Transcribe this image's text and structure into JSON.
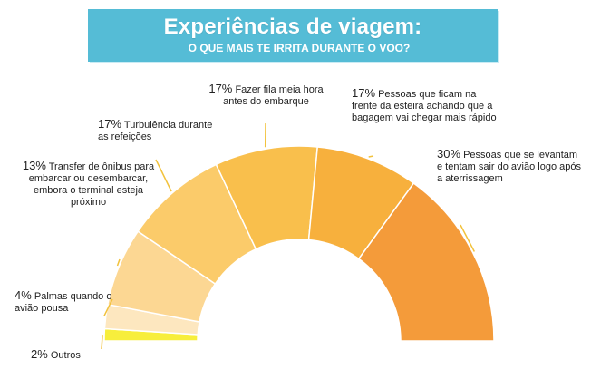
{
  "header": {
    "title": "Experiências de viagem:",
    "subtitle": "O QUE MAIS TE IRRITA DURANTE O VOO?"
  },
  "chart_data": {
    "type": "pie",
    "variant": "semi-donut",
    "title": "Experiências de viagem:",
    "subtitle": "O QUE MAIS TE IRRITA DURANTE O VOO?",
    "slices": [
      {
        "label": "Outros",
        "value": 2,
        "pct_text": "2%",
        "desc": "Outros",
        "color": "#f7ee3c"
      },
      {
        "label": "Palmas quando o avião pousa",
        "value": 4,
        "pct_text": "4%",
        "desc": "Palmas quando o avião pousa",
        "color": "#fde7bf"
      },
      {
        "label": "Transfer de ônibus para embarcar ou desembarcar, embora o terminal esteja próximo",
        "value": 13,
        "pct_text": "13%",
        "desc": "Transfer de ônibus para embarcar ou desembarcar, embora o terminal esteja próximo",
        "color": "#fcd793"
      },
      {
        "label": "Turbulência durante as refeições",
        "value": 17,
        "pct_text": "17%",
        "desc": "Turbulência durante as refeições",
        "color": "#fbcb6a"
      },
      {
        "label": "Fazer fila meia hora antes do embarque",
        "value": 17,
        "pct_text": "17%",
        "desc": "Fazer fila meia hora antes do embarque",
        "color": "#f9bf4c"
      },
      {
        "label": "Pessoas que ficam na frente da esteira achando que a bagagem vai chegar mais rápido",
        "value": 17,
        "pct_text": "17%",
        "desc": "Pessoas que ficam na frente da esteira achando que a bagagem vai chegar mais rápido",
        "color": "#f7b03d"
      },
      {
        "label": "Pessoas que se levantam e tentam sair do avião logo após a aterrissagem",
        "value": 30,
        "pct_text": "30%",
        "desc": "Pessoas que se levantam e tentam sair do avião logo após a aterrissagem",
        "color": "#f49b3a"
      }
    ],
    "leader_color": "#f2c23c"
  }
}
